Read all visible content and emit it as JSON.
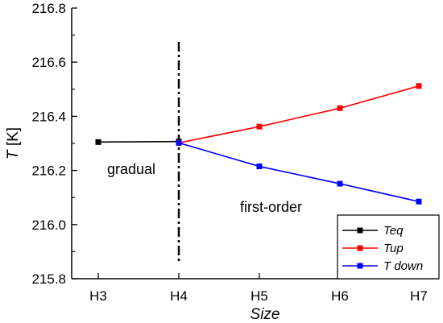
{
  "chart_data": {
    "type": "line",
    "categories": [
      "H3",
      "H4",
      "H5",
      "H6",
      "H7"
    ],
    "xlabel": "Size",
    "ylabel_main": "T",
    "ylabel_unit": "[K]",
    "ylim": [
      215.8,
      216.8
    ],
    "yticks": [
      215.8,
      216.0,
      216.2,
      216.4,
      216.6,
      216.8
    ],
    "ytick_labels": [
      "215.8",
      "216.0",
      "216.2",
      "216.4",
      "216.6",
      "216.8"
    ],
    "grid": false,
    "legend_position": "bottom-right",
    "vline_at": "H4",
    "annotations": [
      {
        "text": "gradual"
      },
      {
        "text": "first-order"
      }
    ],
    "series": [
      {
        "name": "Teq",
        "color": "#000000",
        "x": [
          "H3",
          "H4"
        ],
        "values": [
          216.305,
          216.307
        ]
      },
      {
        "name": "Tup",
        "color": "#ff0000",
        "x": [
          "H4",
          "H5",
          "H6",
          "H7"
        ],
        "values": [
          216.302,
          216.362,
          216.43,
          216.512
        ]
      },
      {
        "name": "T down",
        "color": "#0000ff",
        "x": [
          "H4",
          "H5",
          "H6",
          "H7"
        ],
        "values": [
          216.302,
          216.215,
          216.151,
          216.085
        ]
      }
    ]
  }
}
